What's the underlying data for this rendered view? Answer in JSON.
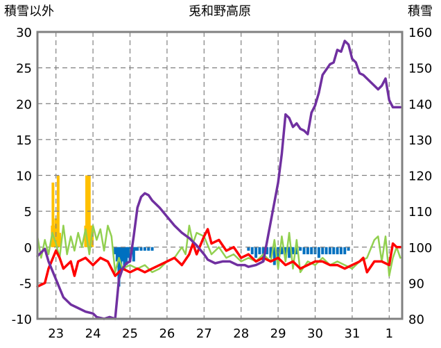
{
  "chart_data": {
    "type": "line",
    "title": "兎和野高原",
    "left_axis_label": "積雪以外",
    "right_axis_label": "積雪",
    "x_tick_labels": [
      "23",
      "24",
      "25",
      "26",
      "27",
      "28",
      "29",
      "30",
      "31",
      "1"
    ],
    "x_range": [
      22.5,
      32.35
    ],
    "left_ylim": [
      -10,
      30
    ],
    "left_ticks": [
      -10,
      -5,
      0,
      5,
      10,
      15,
      20,
      25,
      30
    ],
    "right_ylim": [
      80,
      160
    ],
    "right_ticks": [
      80,
      90,
      100,
      110,
      120,
      130,
      140,
      150,
      160
    ],
    "grid": "dashed-vertical-and-horizontal",
    "colors": {
      "snow_depth": "#7030a0",
      "temperature": "#ff0000",
      "precipitation": "#ffc000",
      "snow_change": "#0070c0",
      "other": "#92d050"
    },
    "series": [
      {
        "key": "snow_depth",
        "axis": "right",
        "x": [
          22.5,
          22.7,
          22.8,
          23.0,
          23.2,
          23.4,
          23.6,
          23.8,
          24.0,
          24.1,
          24.3,
          24.45,
          24.6,
          24.7,
          24.8,
          24.9,
          25.0,
          25.1,
          25.2,
          25.3,
          25.4,
          25.5,
          25.6,
          25.8,
          26.0,
          26.2,
          26.4,
          26.6,
          26.8,
          27.0,
          27.1,
          27.3,
          27.5,
          27.7,
          27.9,
          28.1,
          28.2,
          28.4,
          28.6,
          28.8,
          29.0,
          29.1,
          29.2,
          29.3,
          29.4,
          29.5,
          29.6,
          29.7,
          29.8,
          29.9,
          30.0,
          30.1,
          30.2,
          30.4,
          30.5,
          30.6,
          30.7,
          30.8,
          30.9,
          31.0,
          31.1,
          31.2,
          31.3,
          31.4,
          31.5,
          31.6,
          31.7,
          31.8,
          31.9,
          32.0,
          32.1,
          32.2,
          32.3
        ],
        "y": [
          97.5,
          99.5,
          96,
          91,
          86,
          84,
          83,
          82,
          81.5,
          80.5,
          80,
          80.5,
          80,
          91,
          94,
          95.5,
          96,
          103,
          111,
          114,
          115,
          114.5,
          113,
          111,
          108.5,
          106,
          104,
          102.5,
          100.5,
          98,
          96.5,
          95.5,
          96,
          96,
          95,
          95,
          94.5,
          95,
          96,
          107,
          118,
          126,
          137,
          136,
          133.5,
          134.5,
          133,
          132.5,
          131.5,
          137.5,
          139.5,
          143,
          148,
          151,
          151.5,
          155,
          154.5,
          157.5,
          156.5,
          152.5,
          151.5,
          148.5,
          148,
          147,
          146,
          145,
          144,
          145,
          147,
          141,
          139,
          139,
          139
        ]
      },
      {
        "key": "temperature",
        "axis": "left",
        "x": [
          22.5,
          22.7,
          22.8,
          23.0,
          23.1,
          23.2,
          23.4,
          23.5,
          23.6,
          23.8,
          24.0,
          24.2,
          24.4,
          24.6,
          24.7,
          24.8,
          25.0,
          25.2,
          25.4,
          25.6,
          25.8,
          26.0,
          26.2,
          26.4,
          26.6,
          26.7,
          26.8,
          27.0,
          27.1,
          27.2,
          27.4,
          27.6,
          27.8,
          28.0,
          28.2,
          28.4,
          28.6,
          28.8,
          29.0,
          29.2,
          29.4,
          29.6,
          29.8,
          30.0,
          30.2,
          30.4,
          30.6,
          30.8,
          31.0,
          31.2,
          31.3,
          31.4,
          31.6,
          31.8,
          32.0,
          32.1,
          32.2,
          32.3
        ],
        "y": [
          -5.5,
          -5,
          -3,
          -0.5,
          -1.5,
          -3,
          -2,
          -4,
          -2,
          -1.5,
          -2.5,
          -1.5,
          -2,
          -4,
          -3.5,
          -3,
          -3.5,
          -3,
          -3.5,
          -3,
          -2.5,
          -2,
          -1.5,
          -2.5,
          -1,
          0.5,
          -1,
          1.5,
          2.5,
          0.5,
          1,
          -0.5,
          0,
          -1.5,
          -1,
          -2,
          -1.5,
          -2,
          -1.5,
          -2.5,
          -2,
          -3,
          -2.5,
          -2,
          -2,
          -2.5,
          -2.5,
          -3,
          -2.5,
          -2,
          -1.5,
          -3.5,
          -2,
          -2,
          -2.5,
          0.5,
          0,
          0
        ]
      },
      {
        "key": "other",
        "axis": "left",
        "x": [
          22.5,
          22.6,
          22.7,
          22.8,
          22.9,
          23.0,
          23.1,
          23.2,
          23.3,
          23.4,
          23.5,
          23.6,
          23.7,
          23.8,
          23.9,
          24.0,
          24.1,
          24.2,
          24.3,
          24.4,
          24.5,
          24.6,
          24.7,
          24.8,
          25.0,
          25.2,
          25.4,
          25.6,
          25.8,
          26.0,
          26.2,
          26.4,
          26.5,
          26.6,
          26.7,
          26.8,
          27.0,
          27.2,
          27.4,
          27.6,
          27.8,
          28.0,
          28.2,
          28.4,
          28.6,
          28.8,
          28.9,
          29.0,
          29.1,
          29.2,
          29.3,
          29.4,
          29.5,
          29.6,
          29.8,
          30.0,
          30.2,
          30.4,
          30.6,
          30.8,
          31.0,
          31.2,
          31.4,
          31.6,
          31.7,
          31.8,
          31.9,
          32.0,
          32.1,
          32.2,
          32.3
        ],
        "y": [
          1.5,
          -1.5,
          1,
          -1,
          2,
          0.5,
          -1.5,
          3,
          -1,
          1.5,
          -0.5,
          2,
          0,
          2.5,
          -1,
          3,
          1,
          2.5,
          -0.5,
          3,
          1.5,
          -3.5,
          -1.5,
          -3,
          -2.5,
          -3,
          -2.5,
          -3.5,
          -3,
          -2,
          -1.5,
          0,
          -1,
          3,
          0.5,
          2,
          1.5,
          -1,
          0,
          -1.5,
          -1,
          -2,
          -1.5,
          -2,
          -1,
          -2,
          1,
          -3,
          1.5,
          -2,
          2,
          -3,
          1,
          -3.5,
          -2,
          -2.5,
          -1.5,
          -2.5,
          -2,
          -2.5,
          -3,
          -2,
          -1.5,
          1,
          1.5,
          -2,
          1.5,
          -4,
          -1.5,
          0,
          -1.5
        ]
      }
    ],
    "bars": [
      {
        "key": "precipitation",
        "axis": "left",
        "x": [
          22.9,
          22.92,
          22.96,
          22.98,
          23.0,
          23.02,
          23.06,
          23.1,
          23.8,
          23.83,
          23.86,
          23.88,
          23.9,
          23.94,
          23.98
        ],
        "values": [
          3,
          9,
          3,
          3,
          4,
          3,
          10,
          2,
          3,
          10,
          10,
          4,
          10,
          3,
          3
        ]
      },
      {
        "key": "snow_change",
        "axis": "left",
        "x": [
          24.6,
          24.65,
          24.7,
          24.75,
          24.8,
          24.85,
          24.9,
          24.95,
          25.0,
          25.05,
          25.1,
          25.15,
          25.2,
          25.3,
          25.4,
          25.5,
          25.6,
          28.2,
          28.3,
          28.4,
          28.5,
          28.6,
          28.7,
          28.8,
          28.9,
          29.0,
          29.1,
          29.2,
          29.3,
          29.4,
          29.5,
          29.6,
          29.7,
          29.8,
          29.9,
          30.0,
          30.1,
          30.2,
          30.3,
          30.4,
          30.5,
          30.6,
          30.7,
          30.8,
          30.9
        ],
        "values": [
          -1,
          -2,
          -5.5,
          -3.5,
          -2,
          -3,
          -2.5,
          -1.5,
          -2,
          -1,
          -2,
          -0.5,
          -0.5,
          -0.5,
          -0.5,
          -0.5,
          -0.5,
          -0.5,
          -1,
          -1.5,
          -1,
          -2,
          -1,
          -1.5,
          -2.5,
          -2,
          -1,
          -1.5,
          -1.5,
          -1,
          -1,
          -0.5,
          -1,
          -1,
          -1,
          -1,
          -1.5,
          -1,
          -1,
          -1,
          -1,
          -1,
          -1,
          -1,
          -0.5
        ]
      }
    ]
  }
}
